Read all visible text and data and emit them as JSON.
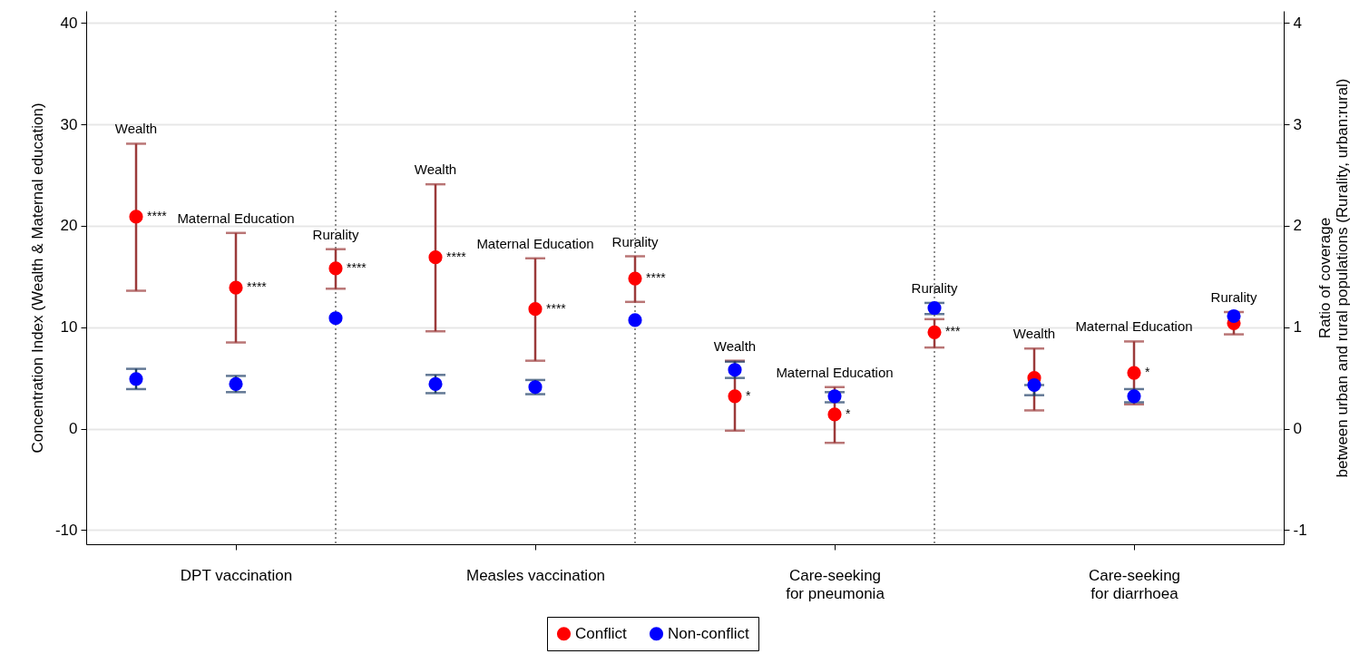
{
  "chart_data": {
    "type": "scatter",
    "ylabel": "Concentration Index (Wealth & Maternal education)",
    "y2label": "Ratio of coverage\nbetween urban and rural populations (Rurality, urban:rural)",
    "categories": [
      null,
      "DPT vaccination",
      null,
      null,
      "Measles vaccination",
      null,
      null,
      "Care-seeking\nfor pneumonia",
      null,
      null,
      "Care-seeking\nfor diarrhoea",
      null
    ],
    "ylim": [
      -11.4,
      41.2
    ],
    "yticks": [
      -10,
      0,
      10,
      20,
      30,
      40
    ],
    "y2lim": [
      -1.14,
      4.12
    ],
    "y2ticks": [
      -1,
      0,
      1,
      2,
      3,
      4
    ],
    "grid": true,
    "legend": "bottom",
    "marker": "circle",
    "series": [
      {
        "name": "Conflict",
        "color": "#ff0000",
        "values": [
          20.9,
          13.9,
          null,
          16.9,
          11.8,
          null,
          3.2,
          1.4,
          null,
          5.0,
          5.5,
          null
        ],
        "errors": [
          [
            13.6,
            28.1
          ],
          [
            8.5,
            19.3
          ],
          null,
          [
            9.6,
            24.1
          ],
          [
            6.7,
            16.8
          ],
          null,
          [
            -0.2,
            6.7
          ],
          [
            -1.4,
            4.1
          ],
          null,
          [
            1.8,
            7.9
          ],
          [
            2.4,
            8.6
          ],
          null
        ],
        "value_labels": [
          "****",
          "****",
          null,
          "****",
          "****",
          null,
          "*",
          "*",
          null,
          null,
          "*",
          null
        ]
      },
      {
        "name": "Non-conflict",
        "color": "#0000ff",
        "values": [
          4.9,
          4.4,
          null,
          4.4,
          4.1,
          null,
          5.8,
          3.2,
          null,
          4.3,
          3.2,
          null
        ],
        "errors": [
          [
            3.9,
            5.9
          ],
          [
            3.6,
            5.2
          ],
          null,
          [
            3.5,
            5.3
          ],
          [
            3.4,
            4.8
          ],
          null,
          [
            5.0,
            6.6
          ],
          [
            2.6,
            3.6
          ],
          null,
          [
            3.3,
            4.3
          ],
          [
            2.6,
            3.9
          ],
          null
        ]
      },
      {
        "color": "#ff0000",
        "axis": "y2",
        "values": [
          null,
          null,
          1.58,
          null,
          null,
          1.48,
          null,
          null,
          0.95,
          null,
          null,
          1.04
        ],
        "errors": [
          null,
          null,
          [
            1.38,
            1.77
          ],
          null,
          null,
          [
            1.25,
            1.7
          ],
          null,
          null,
          [
            0.8,
            1.08
          ],
          null,
          null,
          [
            0.93,
            1.15
          ]
        ],
        "value_labels": [
          null,
          null,
          "****",
          null,
          null,
          "****",
          null,
          null,
          "***",
          null,
          null,
          null
        ]
      },
      {
        "color": "#0000ff",
        "axis": "y2",
        "values": [
          null,
          null,
          1.09,
          null,
          null,
          1.07,
          null,
          null,
          1.19,
          null,
          null,
          1.11
        ],
        "errors": [
          null,
          null,
          null,
          null,
          null,
          null,
          null,
          null,
          [
            1.13,
            1.24
          ],
          null,
          null,
          null
        ]
      }
    ],
    "annotations": [
      "Wealth",
      "Maternal Education",
      "Rurality",
      "Wealth",
      "Maternal Education",
      "Rurality",
      "Wealth",
      "Maternal Education",
      "Rurality",
      "Wealth",
      "Maternal Education",
      "Rurality"
    ]
  }
}
